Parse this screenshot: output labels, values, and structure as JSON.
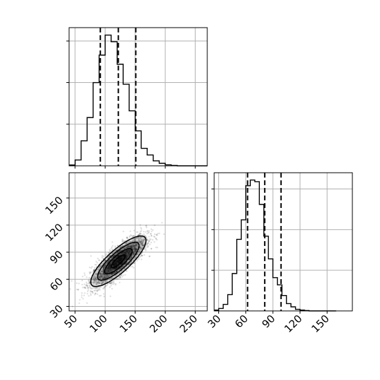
{
  "colors": {
    "line": "#000000",
    "grid": "#b0b0b0",
    "density": "#000000",
    "background": "#ffffff"
  },
  "chart_data": [
    {
      "type": "histogram",
      "panel": "top-left",
      "xlim": [
        40,
        270
      ],
      "grid": true,
      "tick_labels_shown": false,
      "x_ticks": [
        50,
        100,
        150,
        200,
        250
      ],
      "bin_edges": [
        40,
        50,
        60,
        70,
        80,
        90,
        100,
        110,
        120,
        130,
        140,
        150,
        160,
        170,
        180,
        190,
        200,
        210,
        220,
        230,
        240,
        250,
        260,
        270
      ],
      "counts": [
        10,
        70,
        300,
        580,
        1000,
        1330,
        1570,
        1490,
        1220,
        980,
        660,
        420,
        210,
        130,
        60,
        30,
        12,
        5,
        0,
        0,
        0,
        0,
        0
      ],
      "ylim": [
        0,
        1660
      ],
      "quantiles": [
        92,
        122,
        151
      ]
    },
    {
      "type": "scatter",
      "subtype": "2d-density-contour",
      "panel": "bottom-left",
      "xlim": [
        40,
        270
      ],
      "ylim": [
        25,
        178
      ],
      "grid": true,
      "x_ticks": [
        50,
        100,
        150,
        200,
        250
      ],
      "x_tick_labels": [
        "50",
        "100",
        "150",
        "200",
        "250"
      ],
      "y_ticks": [
        30,
        60,
        90,
        120,
        150
      ],
      "y_tick_labels": [
        "30",
        "60",
        "90",
        "120",
        "150"
      ],
      "distribution": {
        "mean_x": 122,
        "mean_y": 80,
        "sd_x": 23,
        "sd_y": 14,
        "corr": 0.82,
        "n_points": 2500
      },
      "contour_levels": [
        0.5,
        1.0,
        1.5,
        2.0
      ]
    },
    {
      "type": "histogram",
      "panel": "bottom-right",
      "xlim": [
        25,
        178
      ],
      "grid": true,
      "tick_labels_shown": true,
      "x_ticks": [
        30,
        60,
        90,
        120,
        150
      ],
      "x_tick_labels": [
        "30",
        "60",
        "90",
        "120",
        "150"
      ],
      "bin_edges": [
        25,
        30,
        35,
        40,
        45,
        50,
        55,
        60,
        65,
        70,
        75,
        80,
        85,
        90,
        95,
        100,
        105,
        110,
        115,
        120,
        125,
        130,
        135,
        140,
        145,
        150,
        155,
        160
      ],
      "counts": [
        10,
        30,
        80,
        200,
        460,
        880,
        1120,
        1540,
        1610,
        1590,
        1310,
        920,
        640,
        410,
        320,
        190,
        90,
        50,
        20,
        10,
        5,
        0,
        0,
        0,
        0,
        0,
        0
      ],
      "ylim": [
        0,
        1700
      ],
      "quantiles": [
        62,
        81,
        99
      ]
    }
  ]
}
